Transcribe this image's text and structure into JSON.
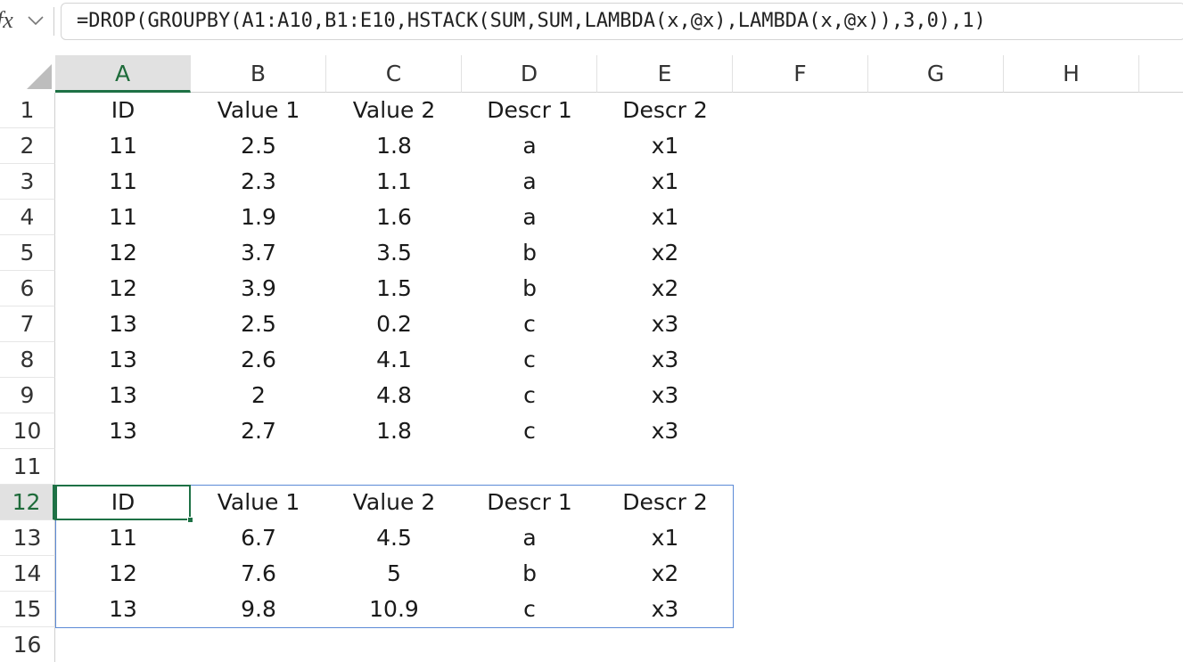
{
  "formula_bar": {
    "icon": "fx",
    "formula": "=DROP(GROUPBY(A1:A10,B1:E10,HSTACK(SUM,SUM,LAMBDA(x,@x),LAMBDA(x,@x)),3,0),1)"
  },
  "column_headers": [
    "A",
    "B",
    "C",
    "D",
    "E",
    "F",
    "G",
    "H"
  ],
  "row_headers": [
    "1",
    "2",
    "3",
    "4",
    "5",
    "6",
    "7",
    "8",
    "9",
    "10",
    "11",
    "12",
    "13",
    "14",
    "15",
    "16"
  ],
  "table": {
    "rows": [
      [
        "ID",
        "Value 1",
        "Value 2",
        "Descr 1",
        "Descr 2"
      ],
      [
        "11",
        "2.5",
        "1.8",
        "a",
        "x1"
      ],
      [
        "11",
        "2.3",
        "1.1",
        "a",
        "x1"
      ],
      [
        "11",
        "1.9",
        "1.6",
        "a",
        "x1"
      ],
      [
        "12",
        "3.7",
        "3.5",
        "b",
        "x2"
      ],
      [
        "12",
        "3.9",
        "1.5",
        "b",
        "x2"
      ],
      [
        "13",
        "2.5",
        "0.2",
        "c",
        "x3"
      ],
      [
        "13",
        "2.6",
        "4.1",
        "c",
        "x3"
      ],
      [
        "13",
        "2",
        "4.8",
        "c",
        "x3"
      ],
      [
        "13",
        "2.7",
        "1.8",
        "c",
        "x3"
      ]
    ]
  },
  "result": {
    "rows": [
      [
        "ID",
        "Value 1",
        "Value 2",
        "Descr 1",
        "Descr 2"
      ],
      [
        "11",
        "6.7",
        "4.5",
        "a",
        "x1"
      ],
      [
        "12",
        "7.6",
        "5",
        "b",
        "x2"
      ],
      [
        "13",
        "9.8",
        "10.9",
        "c",
        "x3"
      ]
    ]
  }
}
